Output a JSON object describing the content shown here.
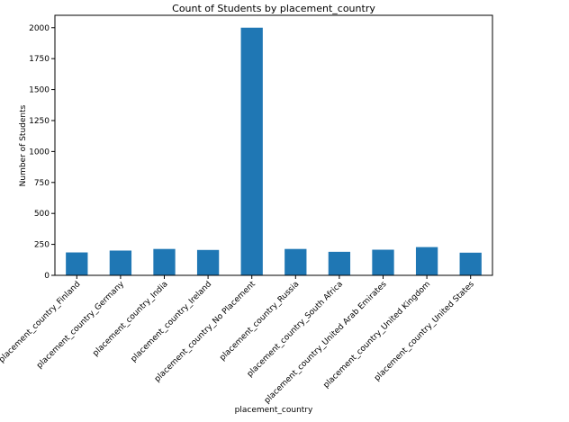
{
  "chart_data": {
    "type": "bar",
    "title": "Count of Students by placement_country",
    "xlabel": "placement_country",
    "ylabel": "Number of Students",
    "categories": [
      "placement_country_Finland",
      "placement_country_Germany",
      "placement_country_India",
      "placement_country_Ireland",
      "placement_country_No Placement",
      "placement_country_Russia",
      "placement_country_South Africa",
      "placement_country_United Arab Emirates",
      "placement_country_United Kingdom",
      "placement_country_United States"
    ],
    "values": [
      185,
      200,
      213,
      205,
      2000,
      213,
      190,
      207,
      228,
      183
    ],
    "ylim": [
      0,
      2100
    ],
    "yticks": [
      0,
      250,
      500,
      750,
      1000,
      1250,
      1500,
      1750,
      2000
    ],
    "grid": false,
    "legend": "none",
    "bar_color": "#1f77b4"
  }
}
